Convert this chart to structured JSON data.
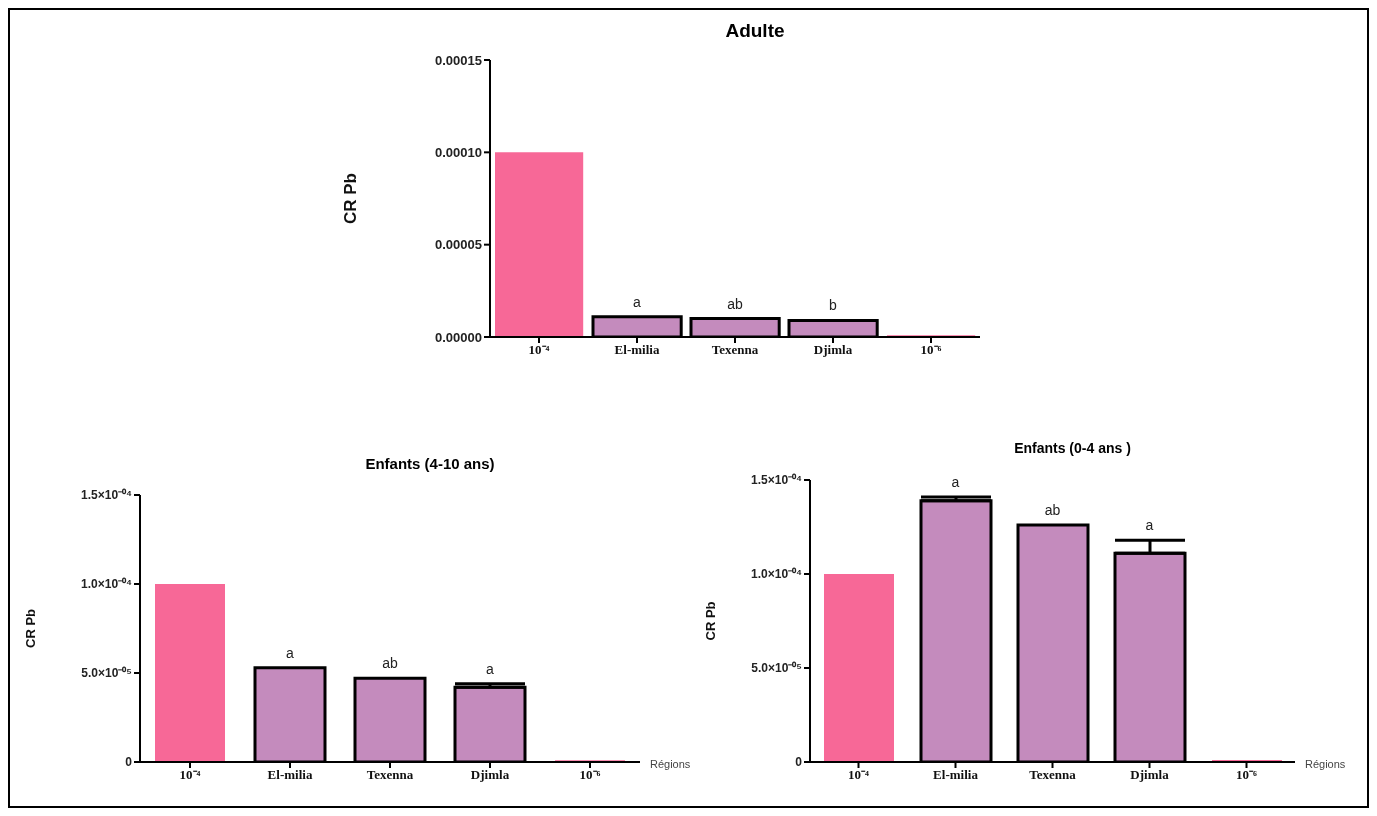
{
  "chart_data": [
    {
      "type": "bar",
      "title": "Adulte",
      "ylabel": "CR Pb",
      "categories": [
        "10⁻⁴",
        "El-milia",
        "Texenna",
        "Djimla",
        "10⁻⁶"
      ],
      "values": [
        0.0001,
        1.1e-05,
        1e-05,
        9e-06,
        1e-06
      ],
      "colors": [
        "#f76897",
        "#c48bbd",
        "#c48bbd",
        "#c48bbd",
        "#f76897"
      ],
      "ylim": [
        0,
        0.00015
      ],
      "yticks": [
        {
          "value": 0,
          "label": "0.00000"
        },
        {
          "value": 5e-05,
          "label": "0.00005"
        },
        {
          "value": 0.0001,
          "label": "0.00010"
        },
        {
          "value": 0.00015,
          "label": "0.00015"
        }
      ],
      "grid": false,
      "legend": false,
      "annotations": [
        {
          "text": "a",
          "x": "El-milia",
          "y": 1.1e-05
        },
        {
          "text": "ab",
          "x": "Texenna",
          "y": 1e-05
        },
        {
          "text": "b",
          "x": "Djimla",
          "y": 9e-06
        }
      ]
    },
    {
      "type": "bar",
      "title": "Enfants (4-10 ans)",
      "ylabel": "CR Pb",
      "xlabel": "Régions",
      "categories": [
        "10⁻⁴",
        "El-milia",
        "Texenna",
        "Djimla",
        "10⁻⁶"
      ],
      "values": [
        0.0001,
        5.3e-05,
        4.7e-05,
        4.2e-05,
        1e-06
      ],
      "errors": [
        null,
        null,
        null,
        2e-06,
        null
      ],
      "colors": [
        "#f76897",
        "#c48bbd",
        "#c48bbd",
        "#c48bbd",
        "#f76897"
      ],
      "ylim": [
        0,
        0.00015
      ],
      "yticks": [
        {
          "value": 0,
          "label": "0"
        },
        {
          "value": 5e-05,
          "label": "5.0×10⁻⁰⁵"
        },
        {
          "value": 0.0001,
          "label": "1.0×10⁻⁰⁴"
        },
        {
          "value": 0.00015,
          "label": "1.5×10⁻⁰⁴"
        }
      ],
      "grid": false,
      "legend": false,
      "annotations": [
        {
          "text": "a",
          "x": "El-milia",
          "y": 5.3e-05
        },
        {
          "text": "ab",
          "x": "Texenna",
          "y": 4.7e-05
        },
        {
          "text": "a",
          "x": "Djimla",
          "y": 4.2e-05
        }
      ]
    },
    {
      "type": "bar",
      "title": "Enfants (0-4 ans )",
      "ylabel": "CR Pb",
      "xlabel": "Régions",
      "categories": [
        "10⁻⁴",
        "El-milia",
        "Texenna",
        "Djimla",
        "10⁻⁶"
      ],
      "values": [
        0.0001,
        0.000139,
        0.000126,
        0.000111,
        1e-06
      ],
      "errors": [
        null,
        2e-06,
        null,
        7e-06,
        null
      ],
      "colors": [
        "#f76897",
        "#c48bbd",
        "#c48bbd",
        "#c48bbd",
        "#f76897"
      ],
      "ylim": [
        0,
        0.00015
      ],
      "yticks": [
        {
          "value": 0,
          "label": "0"
        },
        {
          "value": 5e-05,
          "label": "5.0×10⁻⁰⁵"
        },
        {
          "value": 0.0001,
          "label": "1.0×10⁻⁰⁴"
        },
        {
          "value": 0.00015,
          "label": "1.5×10⁻⁰⁴"
        }
      ],
      "grid": false,
      "legend": false,
      "annotations": [
        {
          "text": "a",
          "x": "El-milia",
          "y": 0.000139
        },
        {
          "text": "ab",
          "x": "Texenna",
          "y": 0.000126
        },
        {
          "text": "a",
          "x": "Djimla",
          "y": 0.000111
        }
      ]
    }
  ]
}
